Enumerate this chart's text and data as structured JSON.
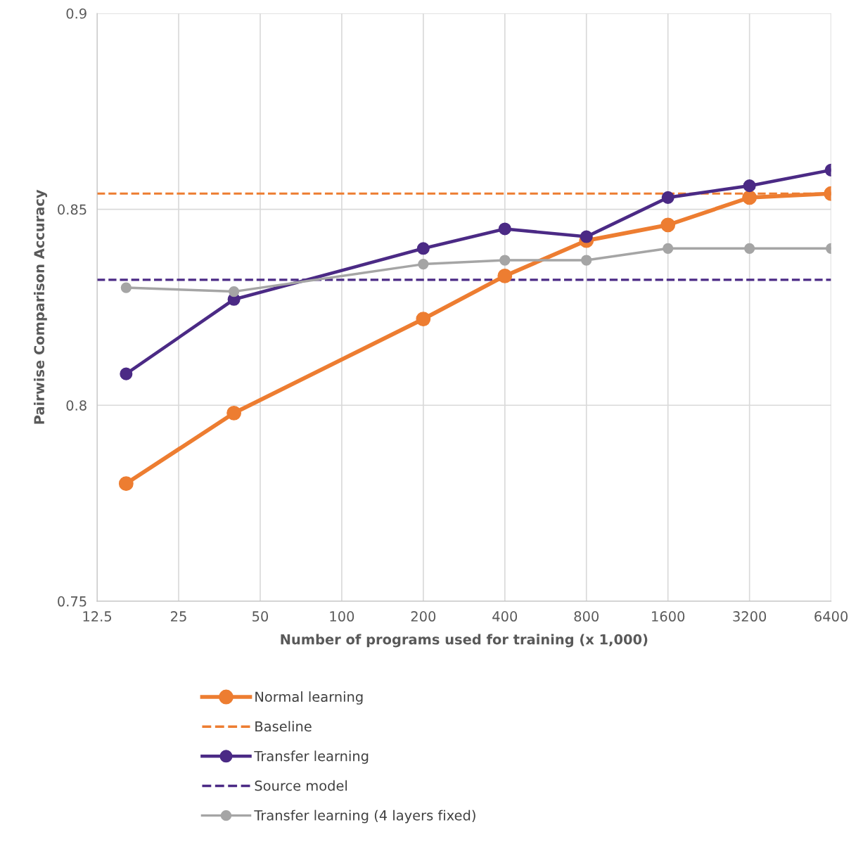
{
  "chart_data": {
    "type": "line",
    "xlabel": "Number of programs used for training (x 1,000)",
    "ylabel": "Pairwise Comparison Accuracy",
    "log": "x",
    "xlim": [
      12.5,
      6400
    ],
    "xticks": [
      12.5,
      25,
      50,
      100,
      200,
      400,
      800,
      1600,
      3200,
      6400
    ],
    "ylim": [
      0.75,
      0.9
    ],
    "yticks": [
      0.75,
      0.8,
      0.85,
      0.9
    ],
    "grid": true,
    "legend": "bottom",
    "marker": "circle",
    "line_style": "solid",
    "series": [
      {
        "name": "Normal learning",
        "color": "#ed7d31",
        "x": [
          16,
          40,
          200,
          400,
          800,
          1600,
          3200,
          6400
        ],
        "values": [
          0.78,
          0.798,
          0.822,
          0.833,
          0.842,
          0.846,
          0.853,
          0.854
        ]
      },
      {
        "name": "Transfer learning",
        "color": "#4b2a85",
        "x": [
          16,
          40,
          200,
          400,
          800,
          1600,
          3200,
          6400
        ],
        "values": [
          0.808,
          0.827,
          0.84,
          0.845,
          0.843,
          0.853,
          0.856,
          0.86
        ]
      },
      {
        "name": "Transfer learning (4 layers fixed)",
        "color": "#a5a5a5",
        "x": [
          16,
          40,
          200,
          400,
          800,
          1600,
          3200,
          6400
        ],
        "values": [
          0.83,
          0.829,
          0.836,
          0.837,
          0.837,
          0.84,
          0.84,
          0.84
        ]
      }
    ],
    "ref_lines": [
      {
        "axis": "y",
        "value": 0.854,
        "label": "Baseline",
        "color": "#ed7d31",
        "line_style": "dashed"
      },
      {
        "axis": "y",
        "value": 0.832,
        "label": "Source model",
        "color": "#4b2a85",
        "line_style": "dashed"
      }
    ]
  }
}
